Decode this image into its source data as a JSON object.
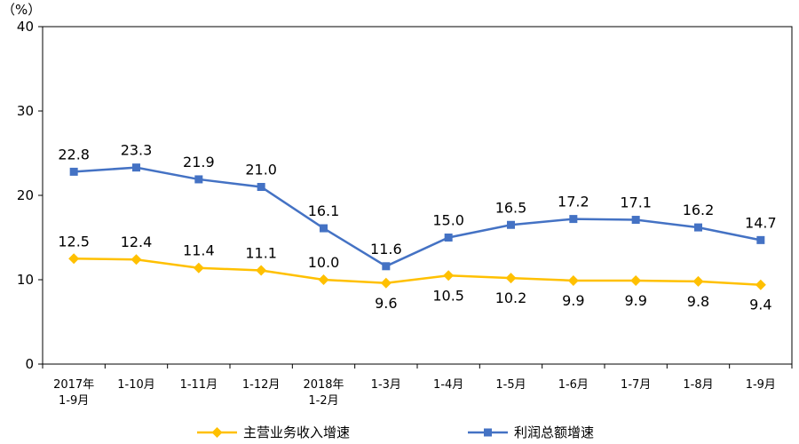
{
  "chart_data": {
    "type": "line",
    "unit_label": "（%）",
    "ylim": [
      0,
      40
    ],
    "yticks": [
      "0",
      "10",
      "20",
      "30",
      "40"
    ],
    "grid": false,
    "legend_position": "bottom",
    "categories": [
      [
        "2017年",
        "1-9月"
      ],
      [
        "1-10月"
      ],
      [
        "1-11月"
      ],
      [
        "1-12月"
      ],
      [
        "2018年",
        "1-2月"
      ],
      [
        "1-3月"
      ],
      [
        "1-4月"
      ],
      [
        "1-5月"
      ],
      [
        "1-6月"
      ],
      [
        "1-7月"
      ],
      [
        "1-8月"
      ],
      [
        "1-9月"
      ]
    ],
    "series": [
      {
        "name": "主营业务收入增速",
        "color": "#FFC000",
        "marker": "diamond",
        "values": [
          12.5,
          12.4,
          11.4,
          11.1,
          10.0,
          9.6,
          10.5,
          10.2,
          9.9,
          9.9,
          9.8,
          9.4
        ],
        "labels": [
          "12.5",
          "12.4",
          "11.4",
          "11.1",
          "10.0",
          "9.6",
          "10.5",
          "10.2",
          "9.9",
          "9.9",
          "9.8",
          "9.4"
        ]
      },
      {
        "name": "利润总额增速",
        "color": "#4472C4",
        "marker": "square",
        "values": [
          22.8,
          23.3,
          21.9,
          21.0,
          16.1,
          11.6,
          15.0,
          16.5,
          17.2,
          17.1,
          16.2,
          14.7
        ],
        "labels": [
          "22.8",
          "23.3",
          "21.9",
          "21.0",
          "16.1",
          "11.6",
          "15.0",
          "16.5",
          "17.2",
          "17.1",
          "16.2",
          "14.7"
        ]
      }
    ]
  }
}
